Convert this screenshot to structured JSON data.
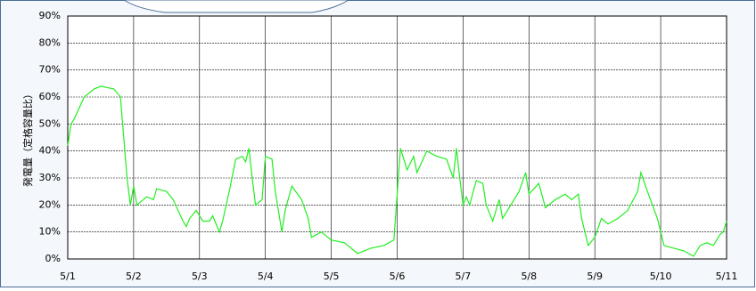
{
  "chart_data": {
    "type": "line",
    "ylabel": "発電量（定格容量比）",
    "x": [
      0,
      0.05,
      0.1,
      0.25,
      0.4,
      0.5,
      0.7,
      0.8,
      0.85,
      0.9,
      0.95,
      1.0,
      1.05,
      1.2,
      1.3,
      1.35,
      1.5,
      1.6,
      1.75,
      1.8,
      1.85,
      1.95,
      2.05,
      2.15,
      2.2,
      2.3,
      2.35,
      2.45,
      2.55,
      2.65,
      2.7,
      2.75,
      2.8,
      2.85,
      2.95,
      3.0,
      3.1,
      3.15,
      3.25,
      3.3,
      3.4,
      3.55,
      3.65,
      3.7,
      3.85,
      4.0,
      4.2,
      4.4,
      4.6,
      4.8,
      4.95,
      5.05,
      5.15,
      5.25,
      5.3,
      5.45,
      5.6,
      5.75,
      5.85,
      5.9,
      5.95,
      6.0,
      6.05,
      6.1,
      6.2,
      6.3,
      6.35,
      6.45,
      6.55,
      6.6,
      6.7,
      6.85,
      6.95,
      7.0,
      7.15,
      7.25,
      7.4,
      7.55,
      7.65,
      7.75,
      7.8,
      7.9,
      8.0,
      8.1,
      8.2,
      8.35,
      8.5,
      8.65,
      8.7,
      8.8,
      8.95,
      9.05,
      9.2,
      9.35,
      9.5,
      9.6,
      9.7,
      9.8,
      9.9,
      9.95,
      10
    ],
    "series": [
      {
        "color": "#22ee22",
        "values": [
          42,
          50,
          52,
          60,
          63,
          64,
          63,
          60,
          45,
          30,
          20,
          27,
          20,
          23,
          22,
          26,
          25,
          22,
          14,
          12,
          15,
          18,
          14,
          14,
          16,
          10,
          14,
          25,
          37,
          38,
          36,
          41,
          30,
          20,
          22,
          38,
          37,
          25,
          10,
          18,
          27,
          22,
          15,
          8,
          10,
          7,
          6,
          2,
          4,
          5,
          7,
          41,
          33,
          38,
          32,
          40,
          38,
          37,
          30,
          41,
          30,
          20,
          23,
          20,
          29,
          28,
          20,
          14,
          22,
          15,
          19,
          25,
          32,
          24,
          28,
          19,
          22,
          24,
          22,
          24,
          15,
          5,
          8,
          15,
          13,
          15,
          18,
          25,
          32,
          25,
          15,
          5,
          4,
          3,
          1,
          5,
          6,
          5,
          9,
          10,
          14
        ]
      }
    ],
    "xlim": [
      0,
      10
    ],
    "xticks": [
      {
        "value": 0,
        "label": "5/1"
      },
      {
        "value": 1,
        "label": "5/2"
      },
      {
        "value": 2,
        "label": "5/3"
      },
      {
        "value": 3,
        "label": "5/4"
      },
      {
        "value": 4,
        "label": "5/5"
      },
      {
        "value": 5,
        "label": "5/6"
      },
      {
        "value": 6,
        "label": "5/7"
      },
      {
        "value": 7,
        "label": "5/8"
      },
      {
        "value": 8,
        "label": "5/9"
      },
      {
        "value": 9,
        "label": "5/10"
      },
      {
        "value": 10,
        "label": "5/11"
      }
    ],
    "ylim": [
      0,
      90
    ],
    "yticks": [
      {
        "value": 0,
        "label": "0%"
      },
      {
        "value": 10,
        "label": "10%"
      },
      {
        "value": 20,
        "label": "20%"
      },
      {
        "value": 30,
        "label": "30%"
      },
      {
        "value": 40,
        "label": "40%"
      },
      {
        "value": 50,
        "label": "50%"
      },
      {
        "value": 60,
        "label": "60%"
      },
      {
        "value": 70,
        "label": "70%"
      },
      {
        "value": 80,
        "label": "80%"
      },
      {
        "value": 90,
        "label": "90%"
      }
    ],
    "grid": true
  }
}
